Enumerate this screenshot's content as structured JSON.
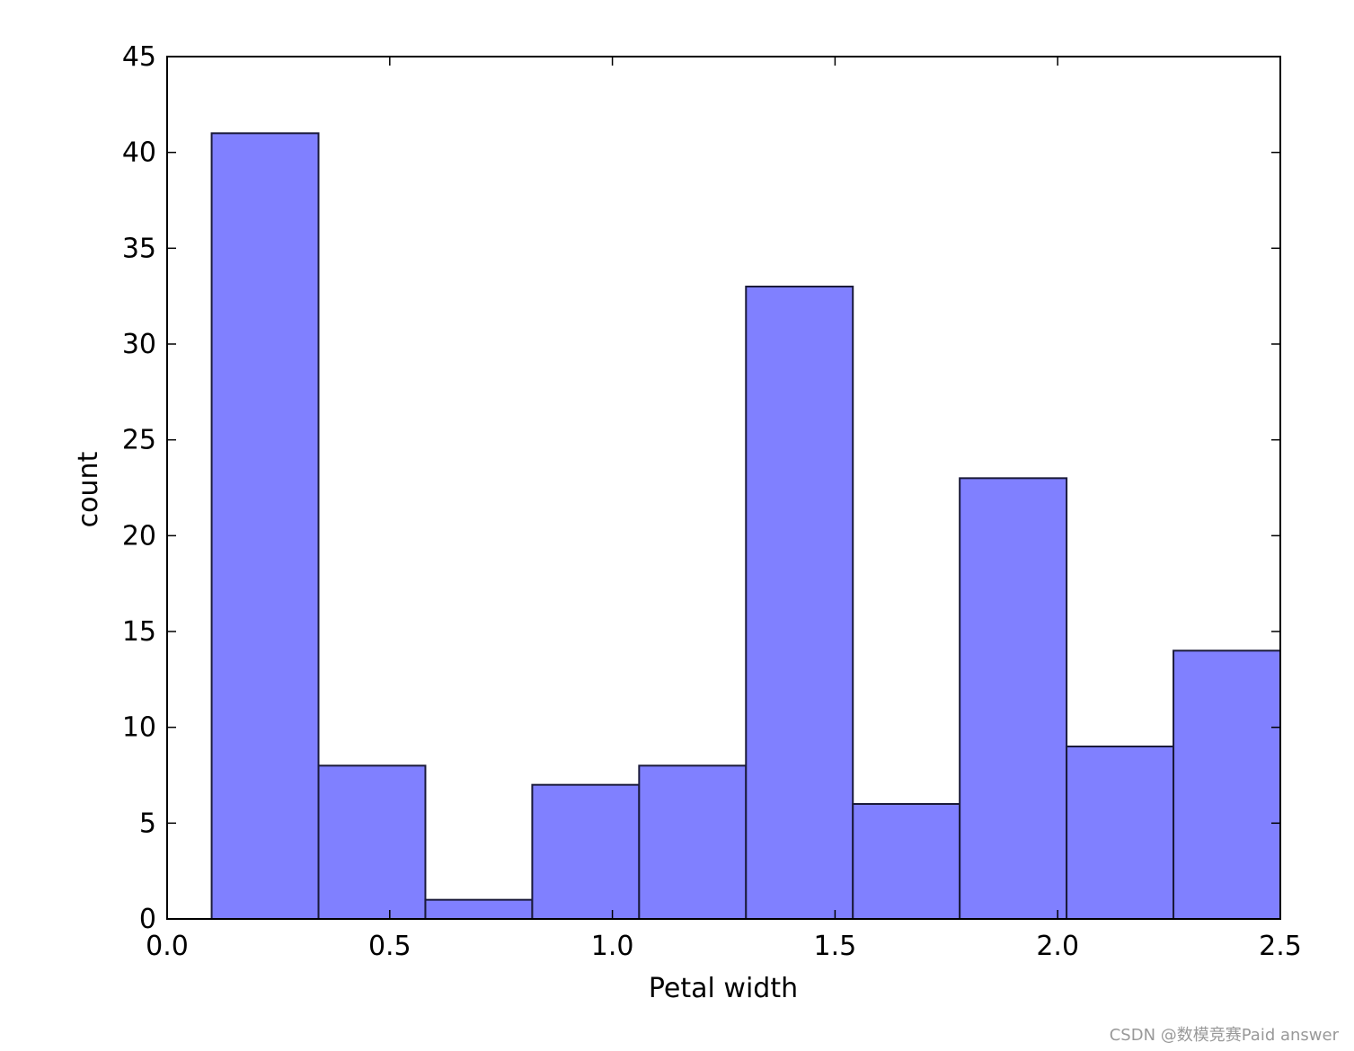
{
  "chart_data": {
    "type": "histogram",
    "x_label": "Petal width",
    "y_label": "count",
    "bins": [
      0.1,
      0.34,
      0.58,
      0.82,
      1.06,
      1.3,
      1.54,
      1.78,
      2.02,
      2.26,
      2.5
    ],
    "values": [
      41,
      8,
      1,
      7,
      8,
      33,
      6,
      23,
      9,
      14
    ],
    "color": "#8080ff",
    "edgecolor": "#1a1a3a",
    "xlim": [
      0,
      2.5
    ],
    "xticks": [
      {
        "value": 0,
        "label": "0.0"
      },
      0.5,
      {
        "value": 1,
        "label": "1.0"
      },
      1.5,
      {
        "value": 2,
        "label": "2.0"
      },
      2.5
    ],
    "ylim": [
      0,
      45
    ],
    "yticks": [
      0,
      5,
      10,
      15,
      20,
      25,
      30,
      35,
      40,
      45
    ]
  },
  "watermark": "CSDN @数模竞赛Paid answer"
}
